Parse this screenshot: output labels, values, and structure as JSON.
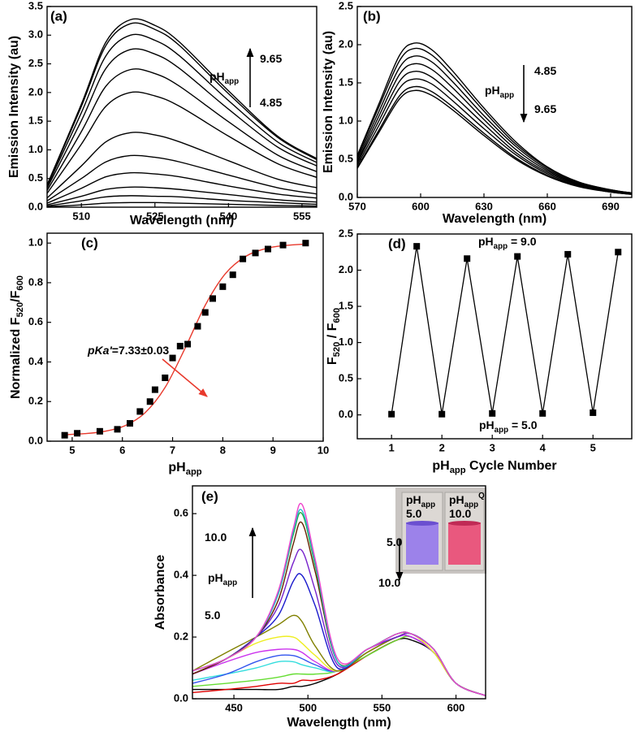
{
  "chart_data": [
    {
      "type": "line",
      "panel_label": "(a)",
      "xlabel": [
        {
          "text": "Wavelength (nm)"
        }
      ],
      "ylabel": [
        {
          "text": "Emission Intensity (au)"
        }
      ],
      "x": [
        503,
        510,
        515,
        520,
        525,
        530,
        540,
        550,
        558
      ],
      "xlim": [
        503,
        558
      ],
      "xticks": [
        510,
        525,
        540,
        555
      ],
      "ylim": [
        0,
        3.5
      ],
      "yticks": [
        {
          "value": 0,
          "label": "0.0"
        },
        0.5,
        {
          "value": 1,
          "label": "1.0"
        },
        1.5,
        {
          "value": 2,
          "label": "2.0"
        },
        2.5,
        {
          "value": 3,
          "label": "3.0"
        },
        3.5
      ],
      "series": [
        {
          "color": "#000000",
          "values": [
            0.39,
            1.8,
            2.88,
            3.27,
            3.17,
            2.88,
            2.03,
            1.24,
            0.85
          ]
        },
        {
          "color": "#000000",
          "values": [
            0.38,
            1.76,
            2.82,
            3.2,
            3.1,
            2.82,
            1.98,
            1.22,
            0.83
          ]
        },
        {
          "color": "#000000",
          "values": [
            0.36,
            1.65,
            2.64,
            3.0,
            2.91,
            2.64,
            1.86,
            1.14,
            0.78
          ]
        },
        {
          "color": "#000000",
          "values": [
            0.33,
            1.51,
            2.42,
            2.75,
            2.67,
            2.42,
            1.71,
            1.05,
            0.72
          ]
        },
        {
          "color": "#000000",
          "values": [
            0.29,
            1.32,
            2.11,
            2.4,
            2.33,
            2.11,
            1.49,
            0.91,
            0.62
          ]
        },
        {
          "color": "#000000",
          "values": [
            0.24,
            1.1,
            1.76,
            2.0,
            1.94,
            1.76,
            1.24,
            0.76,
            0.52
          ]
        },
        {
          "color": "#000000",
          "values": [
            0.16,
            0.72,
            1.14,
            1.3,
            1.26,
            1.14,
            0.81,
            0.49,
            0.34
          ]
        },
        {
          "color": "#000000",
          "values": [
            0.11,
            0.5,
            0.79,
            0.9,
            0.87,
            0.79,
            0.56,
            0.34,
            0.23
          ]
        },
        {
          "color": "#000000",
          "values": [
            0.07,
            0.33,
            0.53,
            0.6,
            0.58,
            0.53,
            0.37,
            0.23,
            0.16
          ]
        },
        {
          "color": "#000000",
          "values": [
            0.04,
            0.19,
            0.31,
            0.35,
            0.34,
            0.31,
            0.22,
            0.13,
            0.09
          ]
        },
        {
          "color": "#000000",
          "values": [
            0.02,
            0.11,
            0.18,
            0.2,
            0.19,
            0.18,
            0.12,
            0.08,
            0.05
          ]
        },
        {
          "color": "#000000",
          "values": [
            0.01,
            0.04,
            0.07,
            0.08,
            0.08,
            0.07,
            0.05,
            0.03,
            0.02
          ]
        }
      ],
      "annotations": [
        [
          {
            "text": "pH"
          },
          {
            "text": "app",
            "sub": true
          }
        ],
        [
          {
            "text": "9.65"
          }
        ],
        [
          {
            "text": "4.85"
          }
        ]
      ]
    },
    {
      "type": "line",
      "panel_label": "(b)",
      "xlabel": [
        {
          "text": "Wavelength (nm)"
        }
      ],
      "ylabel": [
        {
          "text": "Emission Intensity (au)"
        }
      ],
      "x": [
        570,
        580,
        590,
        597,
        605,
        615,
        630,
        645,
        660,
        675,
        690,
        700
      ],
      "xlim": [
        570,
        700
      ],
      "xticks": [
        570,
        600,
        630,
        660,
        690
      ],
      "ylim": [
        0,
        2.5
      ],
      "yticks": [
        {
          "value": 0,
          "label": "0.0"
        },
        0.5,
        {
          "value": 1,
          "label": "1.0"
        },
        1.5,
        {
          "value": 2,
          "label": "2.0"
        },
        2.5
      ],
      "series": [
        {
          "color": "#000000",
          "values": [
            0.55,
            1.21,
            1.86,
            2.02,
            1.94,
            1.66,
            1.17,
            0.73,
            0.4,
            0.2,
            0.1,
            0.06
          ]
        },
        {
          "color": "#000000",
          "values": [
            0.53,
            1.17,
            1.79,
            1.95,
            1.87,
            1.6,
            1.13,
            0.7,
            0.39,
            0.2,
            0.1,
            0.06
          ]
        },
        {
          "color": "#000000",
          "values": [
            0.5,
            1.11,
            1.7,
            1.85,
            1.78,
            1.52,
            1.07,
            0.67,
            0.37,
            0.19,
            0.09,
            0.06
          ]
        },
        {
          "color": "#000000",
          "values": [
            0.47,
            1.05,
            1.61,
            1.75,
            1.68,
            1.44,
            1.02,
            0.63,
            0.35,
            0.18,
            0.09,
            0.05
          ]
        },
        {
          "color": "#000000",
          "values": [
            0.45,
            0.99,
            1.52,
            1.65,
            1.58,
            1.35,
            0.96,
            0.59,
            0.33,
            0.17,
            0.08,
            0.05
          ]
        },
        {
          "color": "#000000",
          "values": [
            0.42,
            0.93,
            1.43,
            1.55,
            1.49,
            1.27,
            0.9,
            0.56,
            0.31,
            0.16,
            0.08,
            0.05
          ]
        },
        {
          "color": "#000000",
          "values": [
            0.39,
            0.87,
            1.33,
            1.45,
            1.39,
            1.19,
            0.84,
            0.52,
            0.29,
            0.15,
            0.07,
            0.04
          ]
        },
        {
          "color": "#000000",
          "values": [
            0.38,
            0.84,
            1.29,
            1.4,
            1.34,
            1.15,
            0.81,
            0.5,
            0.28,
            0.14,
            0.07,
            0.04
          ]
        }
      ],
      "annotations": [
        [
          {
            "text": "pH"
          },
          {
            "text": "app",
            "sub": true
          }
        ],
        [
          {
            "text": "4.85"
          }
        ],
        [
          {
            "text": "9.65"
          }
        ]
      ]
    },
    {
      "type": "scatter",
      "panel_label": "(c)",
      "xlabel": [
        {
          "text": "pH"
        },
        {
          "text": "app",
          "sub": true
        }
      ],
      "ylabel": [
        {
          "text": "Normalized F"
        },
        {
          "text": "520",
          "sub": true
        },
        {
          "text": "/F"
        },
        {
          "text": "600",
          "sub": true
        }
      ],
      "xlim": [
        4.5,
        10
      ],
      "xticks": [
        5,
        6,
        7,
        8,
        9,
        10
      ],
      "ylim": [
        0,
        1.05
      ],
      "yticks": [
        {
          "value": 0,
          "label": "0.0"
        },
        0.2,
        0.4,
        0.6,
        0.8,
        {
          "value": 1,
          "label": "1.0"
        }
      ],
      "series": [
        {
          "type": "scatter",
          "color": "#000000",
          "x": [
            4.85,
            5.1,
            5.55,
            5.9,
            6.15,
            6.35,
            6.55,
            6.65,
            6.85,
            7.0,
            7.15,
            7.3,
            7.5,
            7.65,
            7.8,
            8.0,
            8.2,
            8.4,
            8.65,
            8.9,
            9.2,
            9.65
          ],
          "values": [
            0.03,
            0.04,
            0.05,
            0.06,
            0.09,
            0.15,
            0.2,
            0.26,
            0.32,
            0.42,
            0.48,
            0.49,
            0.58,
            0.65,
            0.72,
            0.78,
            0.84,
            0.92,
            0.95,
            0.97,
            0.99,
            1.0
          ]
        },
        {
          "type": "line",
          "color": "#e8392c",
          "x": [
            4.85,
            5.25,
            5.65,
            6.05,
            6.45,
            6.85,
            7.25,
            7.65,
            8.05,
            8.45,
            8.85,
            9.25,
            9.65
          ],
          "values": [
            0.033,
            0.038,
            0.05,
            0.078,
            0.143,
            0.271,
            0.47,
            0.686,
            0.845,
            0.932,
            0.972,
            0.988,
            0.995
          ]
        }
      ],
      "annotations": [
        [
          {
            "text": "pKa'",
            "italic": true
          },
          {
            "text": "=7.33±0.03"
          }
        ]
      ]
    },
    {
      "type": "line",
      "panel_label": "(d)",
      "markers": true,
      "xlabel": [
        {
          "text": "pH"
        },
        {
          "text": "app",
          "sub": true
        },
        {
          "text": " Cycle Number"
        }
      ],
      "ylabel": [
        {
          "text": "F"
        },
        {
          "text": "520",
          "sub": true
        },
        {
          "text": " / F"
        },
        {
          "text": "600",
          "sub": true
        }
      ],
      "x": [
        1,
        1.5,
        2,
        2.5,
        3,
        3.5,
        4,
        4.5,
        5,
        5.5
      ],
      "xlim": [
        0.32,
        5.77
      ],
      "xticks": [
        1,
        2,
        3,
        4,
        5
      ],
      "ylim": [
        -0.33,
        2.5
      ],
      "yticks": [
        {
          "value": 0,
          "label": "0.0"
        },
        0.5,
        {
          "value": 1,
          "label": "1.0"
        },
        1.5,
        {
          "value": 2,
          "label": "2.0"
        },
        2.5
      ],
      "series": [
        {
          "color": "#000000",
          "values": [
            0.01,
            2.33,
            0.01,
            2.16,
            0.02,
            2.19,
            0.02,
            2.22,
            0.03,
            2.25
          ]
        }
      ],
      "annotations": [
        [
          {
            "text": "pH"
          },
          {
            "text": "app",
            "sub": true
          },
          {
            "text": " = 9.0"
          }
        ],
        [
          {
            "text": "pH"
          },
          {
            "text": "app",
            "sub": true
          },
          {
            "text": " = 5.0"
          }
        ]
      ]
    },
    {
      "type": "line",
      "panel_label": "(e)",
      "xlabel": [
        {
          "text": "Wavelength (nm)"
        }
      ],
      "ylabel": [
        {
          "text": "Absorbance"
        }
      ],
      "x": [
        422,
        445,
        465,
        480,
        490,
        496,
        505,
        520,
        540,
        560,
        570,
        585,
        600,
        620
      ],
      "xlim": [
        422,
        620
      ],
      "xticks": [
        450,
        500,
        550,
        600
      ],
      "ylim": [
        0,
        0.69
      ],
      "yticks": [
        {
          "value": 0,
          "label": "0.0"
        },
        0.2,
        0.4,
        0.6
      ],
      "series": [
        {
          "color": "#000000",
          "values": [
            0.03,
            0.03,
            0.03,
            0.03,
            0.04,
            0.04,
            0.05,
            0.08,
            0.14,
            0.19,
            0.19,
            0.15,
            0.05,
            0.01
          ]
        },
        {
          "color": "#e00000",
          "values": [
            0.02,
            0.03,
            0.04,
            0.05,
            0.05,
            0.06,
            0.06,
            0.08,
            0.14,
            0.19,
            0.2,
            0.15,
            0.05,
            0.01
          ]
        },
        {
          "color": "#66dd33",
          "values": [
            0.04,
            0.05,
            0.06,
            0.07,
            0.08,
            0.08,
            0.08,
            0.09,
            0.14,
            0.19,
            0.2,
            0.15,
            0.05,
            0.01
          ]
        },
        {
          "color": "#33dddd",
          "values": [
            0.06,
            0.08,
            0.1,
            0.12,
            0.12,
            0.11,
            0.1,
            0.09,
            0.15,
            0.2,
            0.2,
            0.15,
            0.05,
            0.01
          ]
        },
        {
          "color": "#3355ee",
          "values": [
            0.05,
            0.08,
            0.12,
            0.14,
            0.14,
            0.13,
            0.11,
            0.09,
            0.15,
            0.2,
            0.2,
            0.15,
            0.05,
            0.01
          ]
        },
        {
          "color": "#cc33ee",
          "values": [
            0.08,
            0.12,
            0.15,
            0.16,
            0.16,
            0.15,
            0.12,
            0.09,
            0.15,
            0.2,
            0.2,
            0.15,
            0.05,
            0.01
          ]
        },
        {
          "color": "#eeee22",
          "values": [
            0.08,
            0.13,
            0.18,
            0.2,
            0.2,
            0.18,
            0.14,
            0.09,
            0.15,
            0.2,
            0.21,
            0.15,
            0.05,
            0.01
          ]
        },
        {
          "color": "#808000",
          "values": [
            0.09,
            0.15,
            0.2,
            0.24,
            0.27,
            0.25,
            0.17,
            0.09,
            0.15,
            0.2,
            0.21,
            0.16,
            0.05,
            0.01
          ]
        },
        {
          "color": "#1a1acc",
          "values": [
            0.08,
            0.13,
            0.2,
            0.27,
            0.38,
            0.4,
            0.3,
            0.1,
            0.16,
            0.2,
            0.21,
            0.16,
            0.05,
            0.01
          ]
        },
        {
          "color": "#7722cc",
          "values": [
            0.08,
            0.13,
            0.2,
            0.3,
            0.44,
            0.48,
            0.35,
            0.11,
            0.16,
            0.2,
            0.21,
            0.16,
            0.05,
            0.01
          ]
        },
        {
          "color": "#662200",
          "values": [
            0.08,
            0.13,
            0.2,
            0.32,
            0.5,
            0.57,
            0.41,
            0.12,
            0.16,
            0.21,
            0.21,
            0.16,
            0.05,
            0.01
          ]
        },
        {
          "color": "#22aa44",
          "values": [
            0.09,
            0.13,
            0.2,
            0.34,
            0.53,
            0.6,
            0.43,
            0.12,
            0.16,
            0.21,
            0.21,
            0.16,
            0.05,
            0.01
          ]
        },
        {
          "color": "#22bbcc",
          "values": [
            0.09,
            0.13,
            0.2,
            0.34,
            0.54,
            0.61,
            0.44,
            0.12,
            0.16,
            0.21,
            0.21,
            0.16,
            0.05,
            0.01
          ]
        },
        {
          "color": "#ee44cc",
          "values": [
            0.09,
            0.13,
            0.2,
            0.35,
            0.55,
            0.63,
            0.45,
            0.13,
            0.16,
            0.21,
            0.21,
            0.16,
            0.05,
            0.01
          ]
        }
      ],
      "annotations": [
        [
          {
            "text": "10.0"
          }
        ],
        [
          {
            "text": "pH"
          },
          {
            "text": "app",
            "sub": true
          }
        ],
        [
          {
            "text": "5.0"
          }
        ],
        [
          {
            "text": "5.0"
          }
        ],
        [
          {
            "text": "10.0"
          }
        ],
        [
          {
            "text": "pH"
          },
          {
            "text": "app",
            "sub": true
          }
        ],
        [
          {
            "text": "5.0"
          }
        ],
        [
          {
            "text": "pH"
          },
          {
            "text": "app",
            "sub": true
          },
          {
            "text": "Q",
            "sup": true
          }
        ],
        [
          {
            "text": "10.0"
          }
        ]
      ]
    }
  ]
}
